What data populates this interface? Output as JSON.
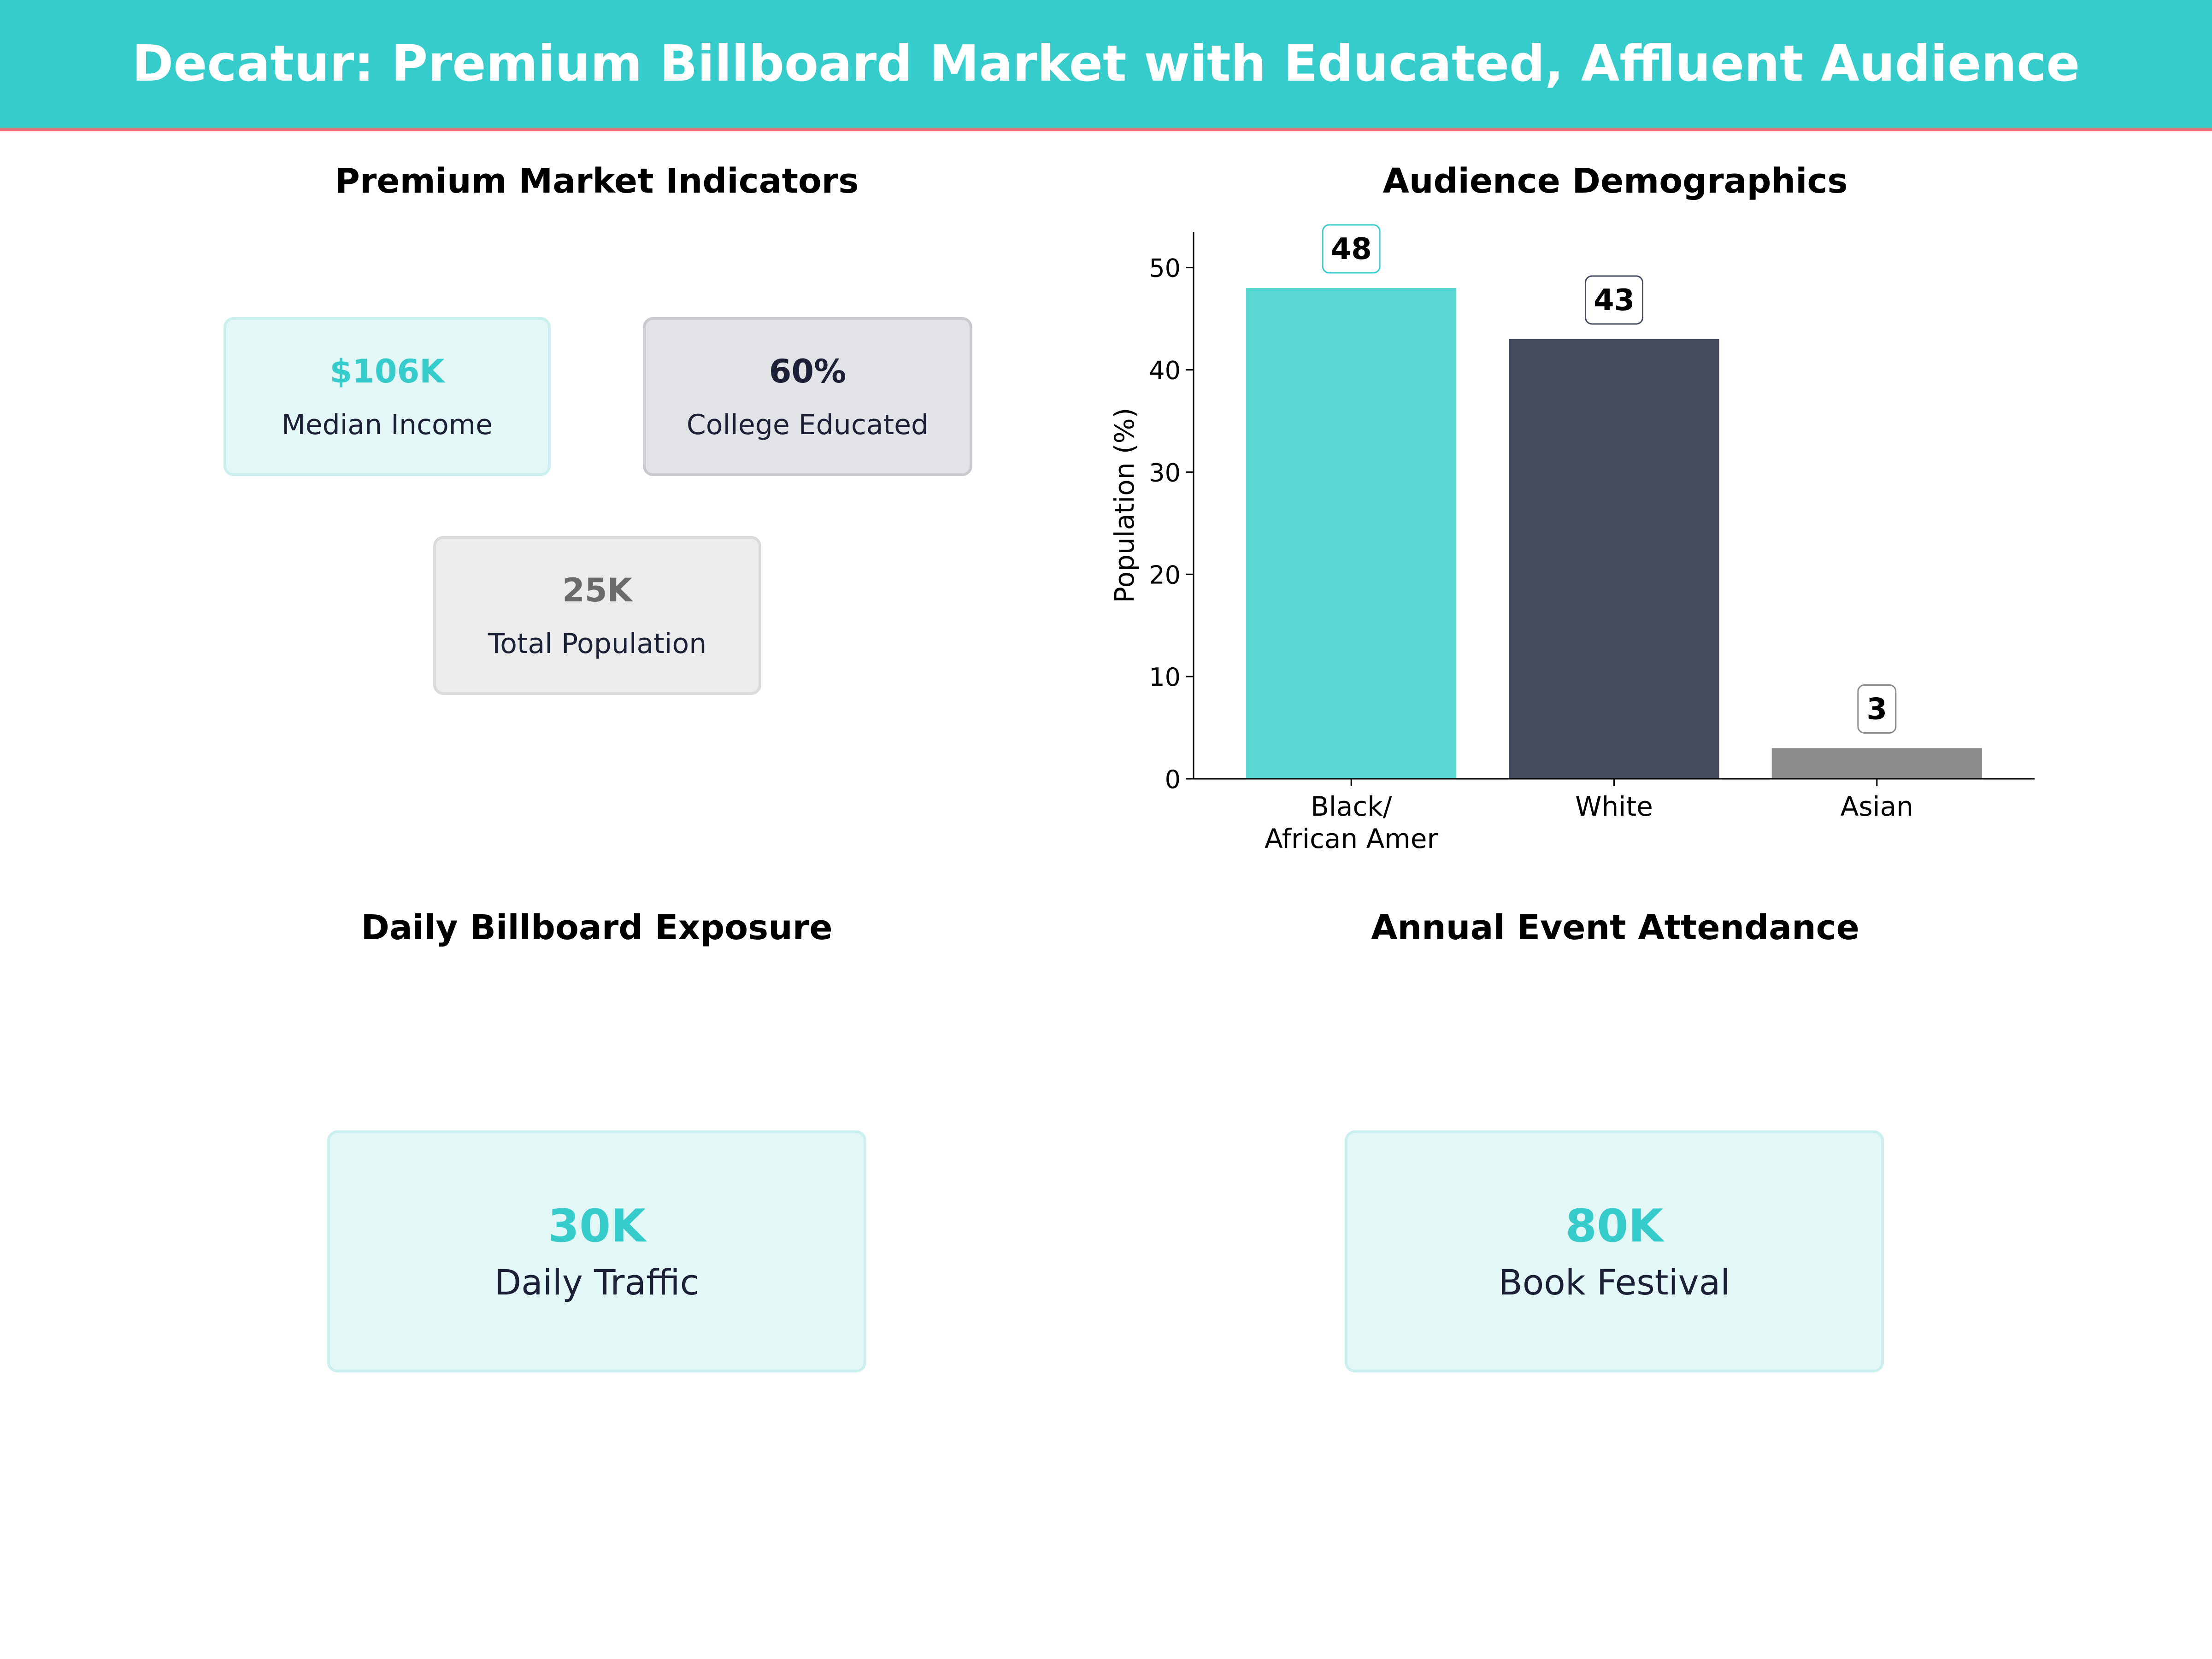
{
  "header": {
    "title": "Decatur: Premium Billboard Market with Educated, Affluent Audience",
    "bg_color": "#36CCCC",
    "rule_color": "#E8707A"
  },
  "indicators": {
    "title": "Premium Market Indicators",
    "cards": [
      {
        "value": "$106K",
        "label": "Median Income",
        "value_color": "#36CCCC",
        "bg": "#E4F7F7",
        "border": "#C9EFEF"
      },
      {
        "value": "60%",
        "label": "College Educated",
        "value_color": "#1B2036",
        "bg": "#E2E3E7",
        "border": "#C9CACF"
      },
      {
        "value": "25K",
        "label": "Total Population",
        "value_color": "#6B6B6B",
        "bg": "#ECECEC",
        "border": "#DADADA"
      }
    ]
  },
  "exposure": {
    "title": "Daily Billboard Exposure",
    "card": {
      "value": "30K",
      "label": "Daily Traffic",
      "value_color": "#36CCCC",
      "bg": "#E4F7F7",
      "border": "#C9EFEF"
    }
  },
  "events": {
    "title": "Annual Event Attendance",
    "card": {
      "value": "80K",
      "label": "Book Festival",
      "value_color": "#36CCCC",
      "bg": "#E4F7F7",
      "border": "#C9EFEF"
    }
  },
  "chart_data": {
    "type": "bar",
    "title": "Audience Demographics",
    "xlabel": "",
    "ylabel": "Population (%)",
    "categories": [
      [
        "Black/",
        "African Amer"
      ],
      [
        "White"
      ],
      [
        "Asian"
      ]
    ],
    "values": [
      48,
      43,
      3
    ],
    "data_labels": [
      "48",
      "43",
      "3"
    ],
    "colors": [
      "#5CD8D4",
      "#454A5F",
      "#8C8C8C"
    ],
    "label_border_colors": [
      "#36CCCC",
      "#454A5F",
      "#8C8C8C"
    ],
    "ylim": [
      0,
      53.5
    ],
    "yticks": [
      0,
      10,
      20,
      30,
      40,
      50
    ],
    "grid": false,
    "legend": "none"
  }
}
